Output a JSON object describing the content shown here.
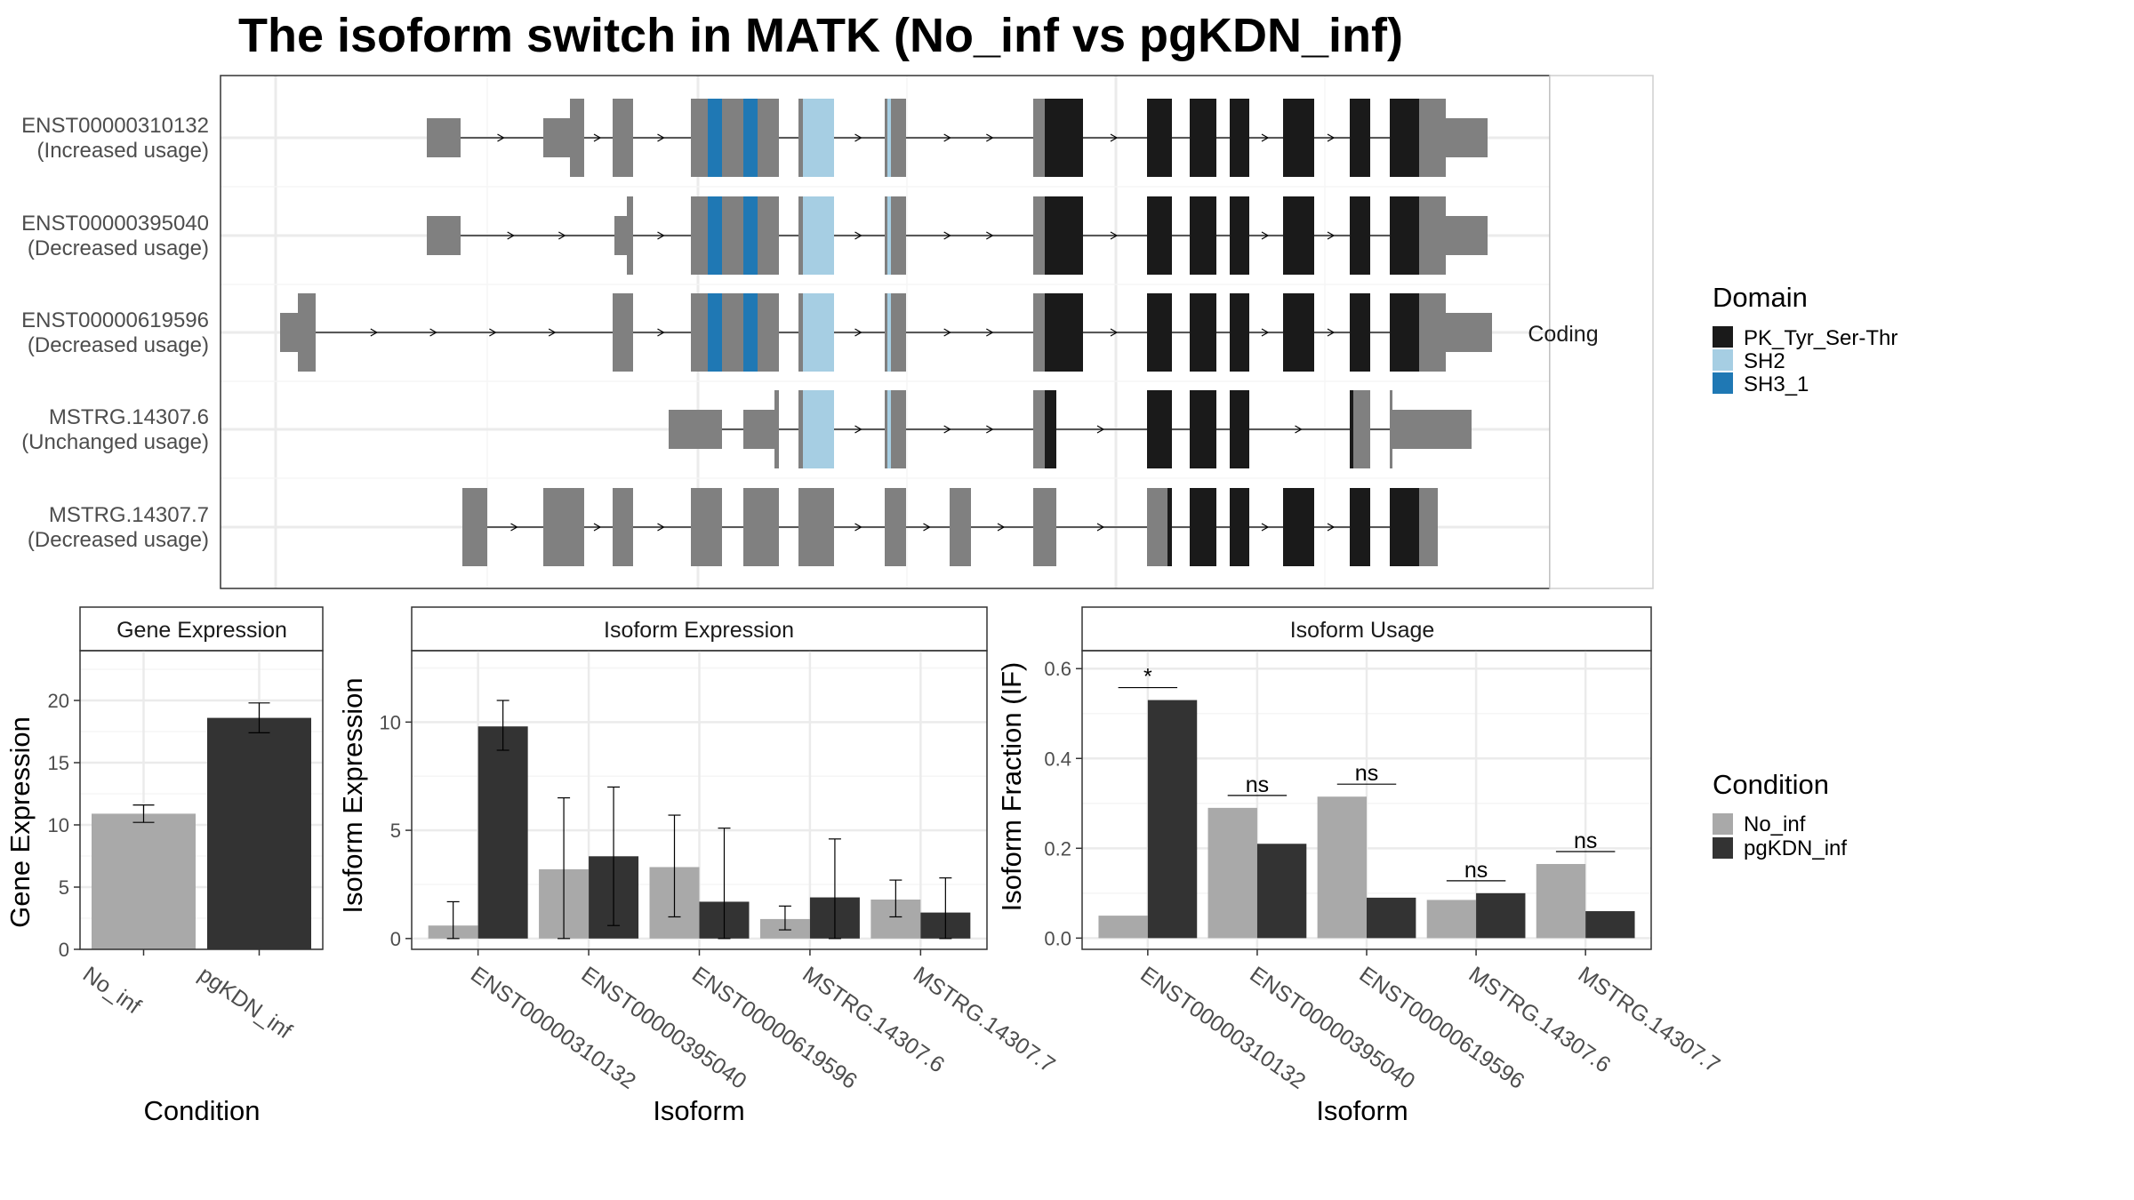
{
  "title": "The isoform switch in MATK (No_inf vs pgKDN_inf)",
  "colors": {
    "utr": "#808080",
    "no_domain_cds": "#808080",
    "PK_Tyr_Ser-Thr": "#1a1a1a",
    "SH2": "#a6cee3",
    "SH3_1": "#1f78b4",
    "No_inf": "#a9a9a9",
    "pgKDN_inf": "#333333"
  },
  "transcript_panel": {
    "strip_label": "Coding",
    "isoforms": [
      {
        "id": "ENST00000310132",
        "usage": "(Increased usage)"
      },
      {
        "id": "ENST00000395040",
        "usage": "(Decreased usage)"
      },
      {
        "id": "ENST00000619596",
        "usage": "(Decreased usage)"
      },
      {
        "id": "MSTRG.14307.6",
        "usage": "(Unchanged usage)"
      },
      {
        "id": "MSTRG.14307.7",
        "usage": "(Decreased usage)"
      }
    ]
  },
  "legend_domain": {
    "title": "Domain",
    "items": [
      "PK_Tyr_Ser-Thr",
      "SH2",
      "SH3_1"
    ]
  },
  "legend_condition": {
    "title": "Condition",
    "items": [
      "No_inf",
      "pgKDN_inf"
    ]
  },
  "chart_data": [
    {
      "type": "bar",
      "title": "Gene Expression",
      "xlabel": "Condition",
      "ylabel": "Gene Expression",
      "ylim": [
        0,
        24
      ],
      "yticks": [
        0,
        5,
        10,
        15,
        20
      ],
      "categories": [
        "No_inf",
        "pgKDN_inf"
      ],
      "values": [
        10.9,
        18.6
      ],
      "error": [
        [
          10.2,
          11.6
        ],
        [
          17.4,
          19.8
        ]
      ]
    },
    {
      "type": "bar",
      "title": "Isoform Expression",
      "xlabel": "Isoform",
      "ylabel": "Isoform Expression",
      "ylim": [
        -0.5,
        13.3
      ],
      "yticks": [
        0,
        5,
        10
      ],
      "categories": [
        "ENST00000310132",
        "ENST00000395040",
        "ENST00000619596",
        "MSTRG.14307.6",
        "MSTRG.14307.7"
      ],
      "series": [
        {
          "name": "No_inf",
          "values": [
            0.6,
            3.2,
            3.3,
            0.9,
            1.8
          ],
          "error": [
            [
              0,
              1.7
            ],
            [
              0,
              6.5
            ],
            [
              1.0,
              5.7
            ],
            [
              0.4,
              1.5
            ],
            [
              1.0,
              2.7
            ]
          ]
        },
        {
          "name": "pgKDN_inf",
          "values": [
            9.8,
            3.8,
            1.7,
            1.9,
            1.2
          ],
          "error": [
            [
              8.7,
              11.0
            ],
            [
              0.6,
              7.0
            ],
            [
              0,
              5.1
            ],
            [
              0,
              4.6
            ],
            [
              0,
              2.8
            ]
          ]
        }
      ]
    },
    {
      "type": "bar",
      "title": "Isoform Usage",
      "xlabel": "Isoform",
      "ylabel": "Isoform Fraction (IF)",
      "ylim": [
        -0.025,
        0.64
      ],
      "yticks": [
        0.0,
        0.2,
        0.4,
        0.6
      ],
      "ytick_labels": [
        "0.0",
        "0.2",
        "0.4",
        "0.6"
      ],
      "categories": [
        "ENST00000310132",
        "ENST00000395040",
        "ENST00000619596",
        "MSTRG.14307.6",
        "MSTRG.14307.7"
      ],
      "series": [
        {
          "name": "No_inf",
          "values": [
            0.05,
            0.29,
            0.315,
            0.085,
            0.165
          ]
        },
        {
          "name": "pgKDN_inf",
          "values": [
            0.53,
            0.21,
            0.09,
            0.1,
            0.06
          ]
        }
      ],
      "significance": [
        "*",
        "ns",
        "ns",
        "ns",
        "ns"
      ]
    }
  ]
}
